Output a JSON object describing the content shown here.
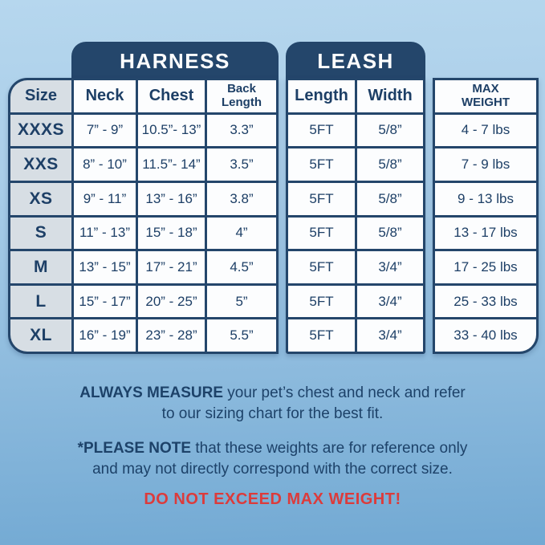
{
  "sections": {
    "harness": "HARNESS",
    "leash": "LEASH"
  },
  "headers": {
    "size": "Size",
    "neck": "Neck",
    "chest": "Chest",
    "back_length": "Back\nLength",
    "length": "Length",
    "width": "Width",
    "max_weight": "MAX\nWEIGHT"
  },
  "rows": [
    {
      "size": "XXXS",
      "neck": "7” - 9”",
      "chest": "10.5”- 13”",
      "back": "3.3”",
      "length": "5FT",
      "width": "5/8”",
      "max": "4 - 7 lbs"
    },
    {
      "size": "XXS",
      "neck": "8” - 10”",
      "chest": "11.5”- 14”",
      "back": "3.5”",
      "length": "5FT",
      "width": "5/8”",
      "max": "7 - 9 lbs"
    },
    {
      "size": "XS",
      "neck": "9” - 11”",
      "chest": "13” - 16”",
      "back": "3.8”",
      "length": "5FT",
      "width": "5/8”",
      "max": "9 - 13 lbs"
    },
    {
      "size": "S",
      "neck": "11” - 13”",
      "chest": "15” - 18”",
      "back": "4”",
      "length": "5FT",
      "width": "5/8”",
      "max": "13 - 17 lbs"
    },
    {
      "size": "M",
      "neck": "13” - 15”",
      "chest": "17” - 21”",
      "back": "4.5”",
      "length": "5FT",
      "width": "3/4”",
      "max": "17 - 25 lbs"
    },
    {
      "size": "L",
      "neck": "15” - 17”",
      "chest": "20” - 25”",
      "back": "5”",
      "length": "5FT",
      "width": "3/4”",
      "max": "25 - 33 lbs"
    },
    {
      "size": "XL",
      "neck": "16” - 19”",
      "chest": "23” - 28”",
      "back": "5.5”",
      "length": "5FT",
      "width": "3/4”",
      "max": "33 - 40 lbs"
    }
  ],
  "notes": {
    "measure_bold": "ALWAYS MEASURE",
    "measure_line1": " your pet’s chest and neck and refer",
    "measure_line2": "to our sizing chart for the best fit.",
    "please_bold": "*PLEASE NOTE",
    "please_line1": " that these weights are for reference only",
    "please_line2": "and may not directly correspond with the correct size.",
    "warning": "DO NOT EXCEED MAX WEIGHT!"
  },
  "colors": {
    "navy": "#24466b",
    "text_navy": "#1d3f66",
    "cell_white": "#fcfdfe",
    "size_column_gray": "#d7dee4",
    "warning_red": "#dc3b3b",
    "background_top": "#b6d7ee",
    "background_bottom": "#72a9d3"
  }
}
